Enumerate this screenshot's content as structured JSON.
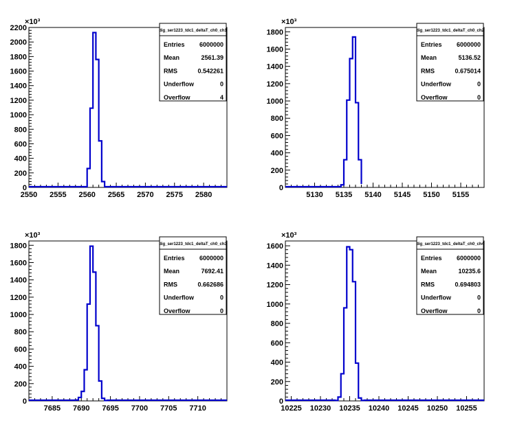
{
  "chart_data": [
    {
      "type": "bar",
      "title": "dig_ser1223_tdc1_deltaT_ch0_ch1",
      "exponent_label": "×10³",
      "xlim": [
        2550,
        2584
      ],
      "ylim": [
        0,
        2200
      ],
      "x_ticks": [
        2550,
        2555,
        2560,
        2565,
        2570,
        2575,
        2580
      ],
      "y_ticks": [
        0,
        200,
        400,
        600,
        800,
        1000,
        1200,
        1400,
        1600,
        1800,
        2000,
        2200
      ],
      "bin_width": 0.5,
      "bin_edges": [
        2560.0,
        2560.5,
        2561.0,
        2561.5,
        2562.0,
        2562.5,
        2563.0
      ],
      "values": [
        260,
        1090,
        2130,
        1760,
        640,
        80
      ],
      "stats": [
        {
          "label": "Entries",
          "value": "6000000"
        },
        {
          "label": "Mean",
          "value": "2561.39"
        },
        {
          "label": "RMS",
          "value": "0.542261"
        },
        {
          "label": "Underflow",
          "value": "0"
        },
        {
          "label": "Overflow",
          "value": "4"
        }
      ],
      "series_color": "#0000cc"
    },
    {
      "type": "bar",
      "title": "dig_ser1223_tdc1_deltaT_ch0_ch2",
      "exponent_label": "×10³",
      "xlim": [
        5125,
        5159
      ],
      "ylim": [
        0,
        1850
      ],
      "x_ticks": [
        5130,
        5135,
        5140,
        5145,
        5150,
        5155
      ],
      "y_ticks": [
        0,
        200,
        400,
        600,
        800,
        1000,
        1200,
        1400,
        1600,
        1800
      ],
      "bin_width": 0.5,
      "bin_edges": [
        5134.5,
        5135.0,
        5135.5,
        5136.0,
        5136.5,
        5137.0,
        5137.5,
        5138.0
      ],
      "values": [
        30,
        320,
        1010,
        1490,
        1740,
        980,
        320,
        40
      ],
      "stats": [
        {
          "label": "Entries",
          "value": "6000000"
        },
        {
          "label": "Mean",
          "value": "5136.52"
        },
        {
          "label": "RMS",
          "value": "0.675014"
        },
        {
          "label": "Underflow",
          "value": "0"
        },
        {
          "label": "Overflow",
          "value": "0"
        }
      ],
      "series_color": "#0000cc"
    },
    {
      "type": "bar",
      "title": "dig_ser1223_tdc1_deltaT_ch0_ch3",
      "exponent_label": "×10³",
      "xlim": [
        7681,
        7715
      ],
      "ylim": [
        0,
        1850
      ],
      "x_ticks": [
        7685,
        7690,
        7695,
        7700,
        7705,
        7710
      ],
      "y_ticks": [
        0,
        200,
        400,
        600,
        800,
        1000,
        1200,
        1400,
        1600,
        1800
      ],
      "bin_width": 0.5,
      "bin_edges": [
        7689.0,
        7689.5,
        7690.0,
        7690.5,
        7691.0,
        7691.5,
        7692.0,
        7692.5,
        7693.0,
        7693.5,
        7694.0,
        7694.5
      ],
      "values": [
        10,
        40,
        110,
        360,
        1120,
        1790,
        1490,
        870,
        230,
        30,
        5
      ],
      "stats": [
        {
          "label": "Entries",
          "value": "6000000"
        },
        {
          "label": "Mean",
          "value": "7692.41"
        },
        {
          "label": "RMS",
          "value": "0.662686"
        },
        {
          "label": "Underflow",
          "value": "0"
        },
        {
          "label": "Overflow",
          "value": "0"
        }
      ],
      "series_color": "#0000cc"
    },
    {
      "type": "bar",
      "title": "dig_ser1223_tdc1_deltaT_ch0_ch4",
      "exponent_label": "×10³",
      "xlim": [
        10224,
        10258
      ],
      "ylim": [
        0,
        1650
      ],
      "x_ticks": [
        10225,
        10230,
        10235,
        10240,
        10245,
        10250,
        10255
      ],
      "y_ticks": [
        0,
        200,
        400,
        600,
        800,
        1000,
        1200,
        1400,
        1600
      ],
      "bin_width": 0.5,
      "bin_edges": [
        10232.5,
        10233.0,
        10233.5,
        10234.0,
        10234.5,
        10235.0,
        10235.5,
        10236.0,
        10236.5,
        10237.0,
        10237.5
      ],
      "values": [
        5,
        40,
        280,
        960,
        1590,
        1560,
        1230,
        390,
        30,
        5
      ],
      "stats": [
        {
          "label": "Entries",
          "value": "6000000"
        },
        {
          "label": "Mean",
          "value": "10235.6"
        },
        {
          "label": "RMS",
          "value": "0.694803"
        },
        {
          "label": "Underflow",
          "value": "0"
        },
        {
          "label": "Overflow",
          "value": "0"
        }
      ],
      "series_color": "#0000cc"
    }
  ]
}
